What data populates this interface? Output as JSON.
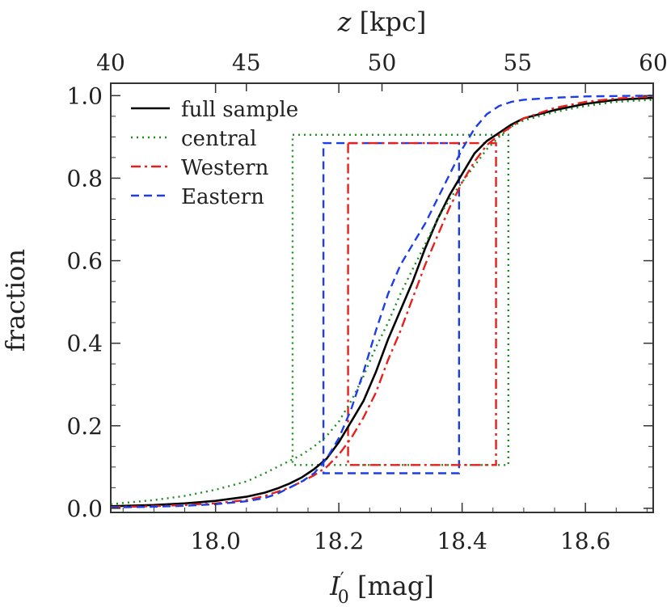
{
  "chart_data": {
    "type": "line",
    "title": "",
    "xlabel": "I′0 [mag]",
    "xlabel_main": "I",
    "xlabel_prime": "′",
    "xlabel_sub": "0",
    "xlabel_unit": " [mag]",
    "ylabel": "fraction",
    "x2label": "z [kpc]",
    "x2label_var": "z",
    "x2label_unit": " [kpc]",
    "xlim": [
      17.83,
      18.71
    ],
    "ylim": [
      -0.01,
      1.03
    ],
    "x2lim": [
      40,
      60
    ],
    "xticks": [
      18.0,
      18.2,
      18.4,
      18.6
    ],
    "xtick_labels": [
      "18.0",
      "18.2",
      "18.4",
      "18.6"
    ],
    "yticks": [
      0.0,
      0.2,
      0.4,
      0.6,
      0.8,
      1.0
    ],
    "ytick_labels": [
      "0.0",
      "0.2",
      "0.4",
      "0.6",
      "0.8",
      "1.0"
    ],
    "x2ticks": [
      40,
      45,
      50,
      55,
      60
    ],
    "x2tick_labels": [
      "40",
      "45",
      "50",
      "55",
      "60"
    ],
    "grid": false,
    "legend_position": "top-left",
    "series": [
      {
        "name": "full sample",
        "color": "#000000",
        "dash": "solid",
        "x": [
          17.83,
          17.9,
          17.95,
          18.0,
          18.05,
          18.08,
          18.1,
          18.12,
          18.14,
          18.16,
          18.18,
          18.2,
          18.22,
          18.24,
          18.26,
          18.28,
          18.3,
          18.32,
          18.34,
          18.36,
          18.38,
          18.4,
          18.42,
          18.44,
          18.46,
          18.48,
          18.5,
          18.55,
          18.6,
          18.65,
          18.71
        ],
        "y": [
          0.005,
          0.008,
          0.012,
          0.018,
          0.028,
          0.038,
          0.048,
          0.06,
          0.075,
          0.095,
          0.12,
          0.16,
          0.21,
          0.26,
          0.33,
          0.41,
          0.48,
          0.55,
          0.63,
          0.7,
          0.76,
          0.81,
          0.86,
          0.89,
          0.91,
          0.93,
          0.945,
          0.965,
          0.98,
          0.99,
          0.995
        ]
      },
      {
        "name": "central",
        "color": "#1a8c1a",
        "dash": "dotted",
        "x": [
          17.83,
          17.9,
          17.95,
          18.0,
          18.05,
          18.08,
          18.1,
          18.12,
          18.14,
          18.16,
          18.18,
          18.2,
          18.22,
          18.24,
          18.26,
          18.28,
          18.3,
          18.32,
          18.34,
          18.36,
          18.38,
          18.4,
          18.42,
          18.44,
          18.46,
          18.48,
          18.5,
          18.55,
          18.6,
          18.65,
          18.71
        ],
        "y": [
          0.01,
          0.02,
          0.03,
          0.045,
          0.065,
          0.085,
          0.1,
          0.115,
          0.13,
          0.15,
          0.175,
          0.21,
          0.26,
          0.32,
          0.39,
          0.45,
          0.52,
          0.58,
          0.64,
          0.7,
          0.75,
          0.79,
          0.83,
          0.87,
          0.9,
          0.925,
          0.94,
          0.96,
          0.975,
          0.985,
          0.99
        ]
      },
      {
        "name": "Western",
        "color": "#e8201c",
        "dash": "dashdot",
        "x": [
          17.83,
          17.9,
          17.95,
          18.0,
          18.05,
          18.08,
          18.1,
          18.12,
          18.14,
          18.16,
          18.18,
          18.2,
          18.22,
          18.24,
          18.26,
          18.28,
          18.3,
          18.32,
          18.34,
          18.36,
          18.38,
          18.4,
          18.42,
          18.44,
          18.46,
          18.48,
          18.5,
          18.55,
          18.6,
          18.65,
          18.71
        ],
        "y": [
          0.003,
          0.005,
          0.008,
          0.012,
          0.02,
          0.03,
          0.04,
          0.05,
          0.065,
          0.08,
          0.1,
          0.13,
          0.17,
          0.22,
          0.28,
          0.36,
          0.43,
          0.51,
          0.59,
          0.66,
          0.73,
          0.79,
          0.84,
          0.88,
          0.905,
          0.925,
          0.945,
          0.97,
          0.985,
          0.993,
          0.998
        ]
      },
      {
        "name": "Eastern",
        "color": "#1c3ee8",
        "dash": "dashed",
        "x": [
          17.83,
          17.9,
          17.95,
          18.0,
          18.05,
          18.08,
          18.1,
          18.12,
          18.14,
          18.16,
          18.18,
          18.2,
          18.22,
          18.24,
          18.26,
          18.28,
          18.3,
          18.32,
          18.34,
          18.36,
          18.38,
          18.4,
          18.42,
          18.44,
          18.46,
          18.48,
          18.5,
          18.55,
          18.6,
          18.65,
          18.71
        ],
        "y": [
          0.002,
          0.004,
          0.006,
          0.01,
          0.017,
          0.025,
          0.035,
          0.05,
          0.065,
          0.085,
          0.12,
          0.17,
          0.24,
          0.33,
          0.43,
          0.52,
          0.59,
          0.64,
          0.69,
          0.75,
          0.81,
          0.87,
          0.92,
          0.955,
          0.975,
          0.985,
          0.99,
          0.995,
          0.998,
          0.999,
          1.0
        ]
      }
    ],
    "boxes": [
      {
        "series": "central",
        "x0": 18.125,
        "x1": 18.475,
        "y0": 0.105,
        "y1": 0.905
      },
      {
        "series": "Eastern",
        "x0": 18.175,
        "x1": 18.395,
        "y0": 0.085,
        "y1": 0.885
      },
      {
        "series": "Western",
        "x0": 18.215,
        "x1": 18.455,
        "y0": 0.105,
        "y1": 0.885
      }
    ]
  }
}
